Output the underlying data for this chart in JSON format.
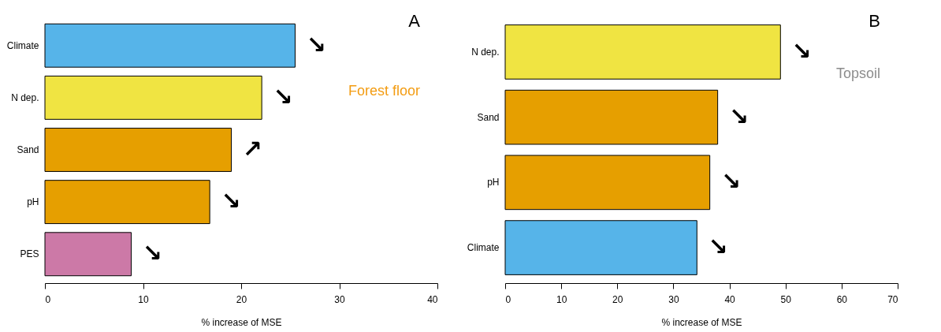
{
  "chart_data": [
    {
      "type": "bar",
      "orientation": "horizontal",
      "categories": [
        "Climate",
        "N dep.",
        "Sand",
        "pH",
        "PES"
      ],
      "values": [
        25.5,
        22.1,
        19.0,
        16.8,
        8.8
      ],
      "colors": [
        "#56b4e9",
        "#f0e442",
        "#e69f00",
        "#e69f00",
        "#cc79a7"
      ],
      "xlim": [
        0,
        40
      ],
      "xticks": [
        0,
        10,
        20,
        30,
        40
      ],
      "xlabel": "% increase of MSE",
      "grid": false,
      "annotations": [
        "A",
        "Forest floor",
        {
          "text": "↘",
          "x": 25.5,
          "y": "Climate"
        },
        {
          "text": "↘",
          "x": 22.1,
          "y": "N dep."
        },
        {
          "text": "↗",
          "x": 19.0,
          "y": "Sand"
        },
        {
          "text": "↘",
          "x": 16.8,
          "y": "pH"
        },
        {
          "text": "↘",
          "x": 8.8,
          "y": "PES"
        }
      ]
    },
    {
      "type": "bar",
      "orientation": "horizontal",
      "categories": [
        "N dep.",
        "Sand",
        "pH",
        "Climate"
      ],
      "values": [
        49.1,
        37.9,
        36.5,
        34.2
      ],
      "colors": [
        "#f0e442",
        "#e69f00",
        "#e69f00",
        "#56b4e9"
      ],
      "xlim": [
        0,
        70
      ],
      "xticks": [
        0,
        10,
        20,
        30,
        40,
        50,
        60,
        70
      ],
      "xlabel": "% increase of MSE",
      "grid": false,
      "annotations": [
        "B",
        "Topsoil",
        {
          "text": "↘",
          "x": 49.1,
          "y": "N dep."
        },
        {
          "text": "↘",
          "x": 37.9,
          "y": "Sand"
        },
        {
          "text": "↘",
          "x": 36.5,
          "y": "pH"
        },
        {
          "text": "↘",
          "x": 34.2,
          "y": "Climate"
        }
      ]
    }
  ]
}
